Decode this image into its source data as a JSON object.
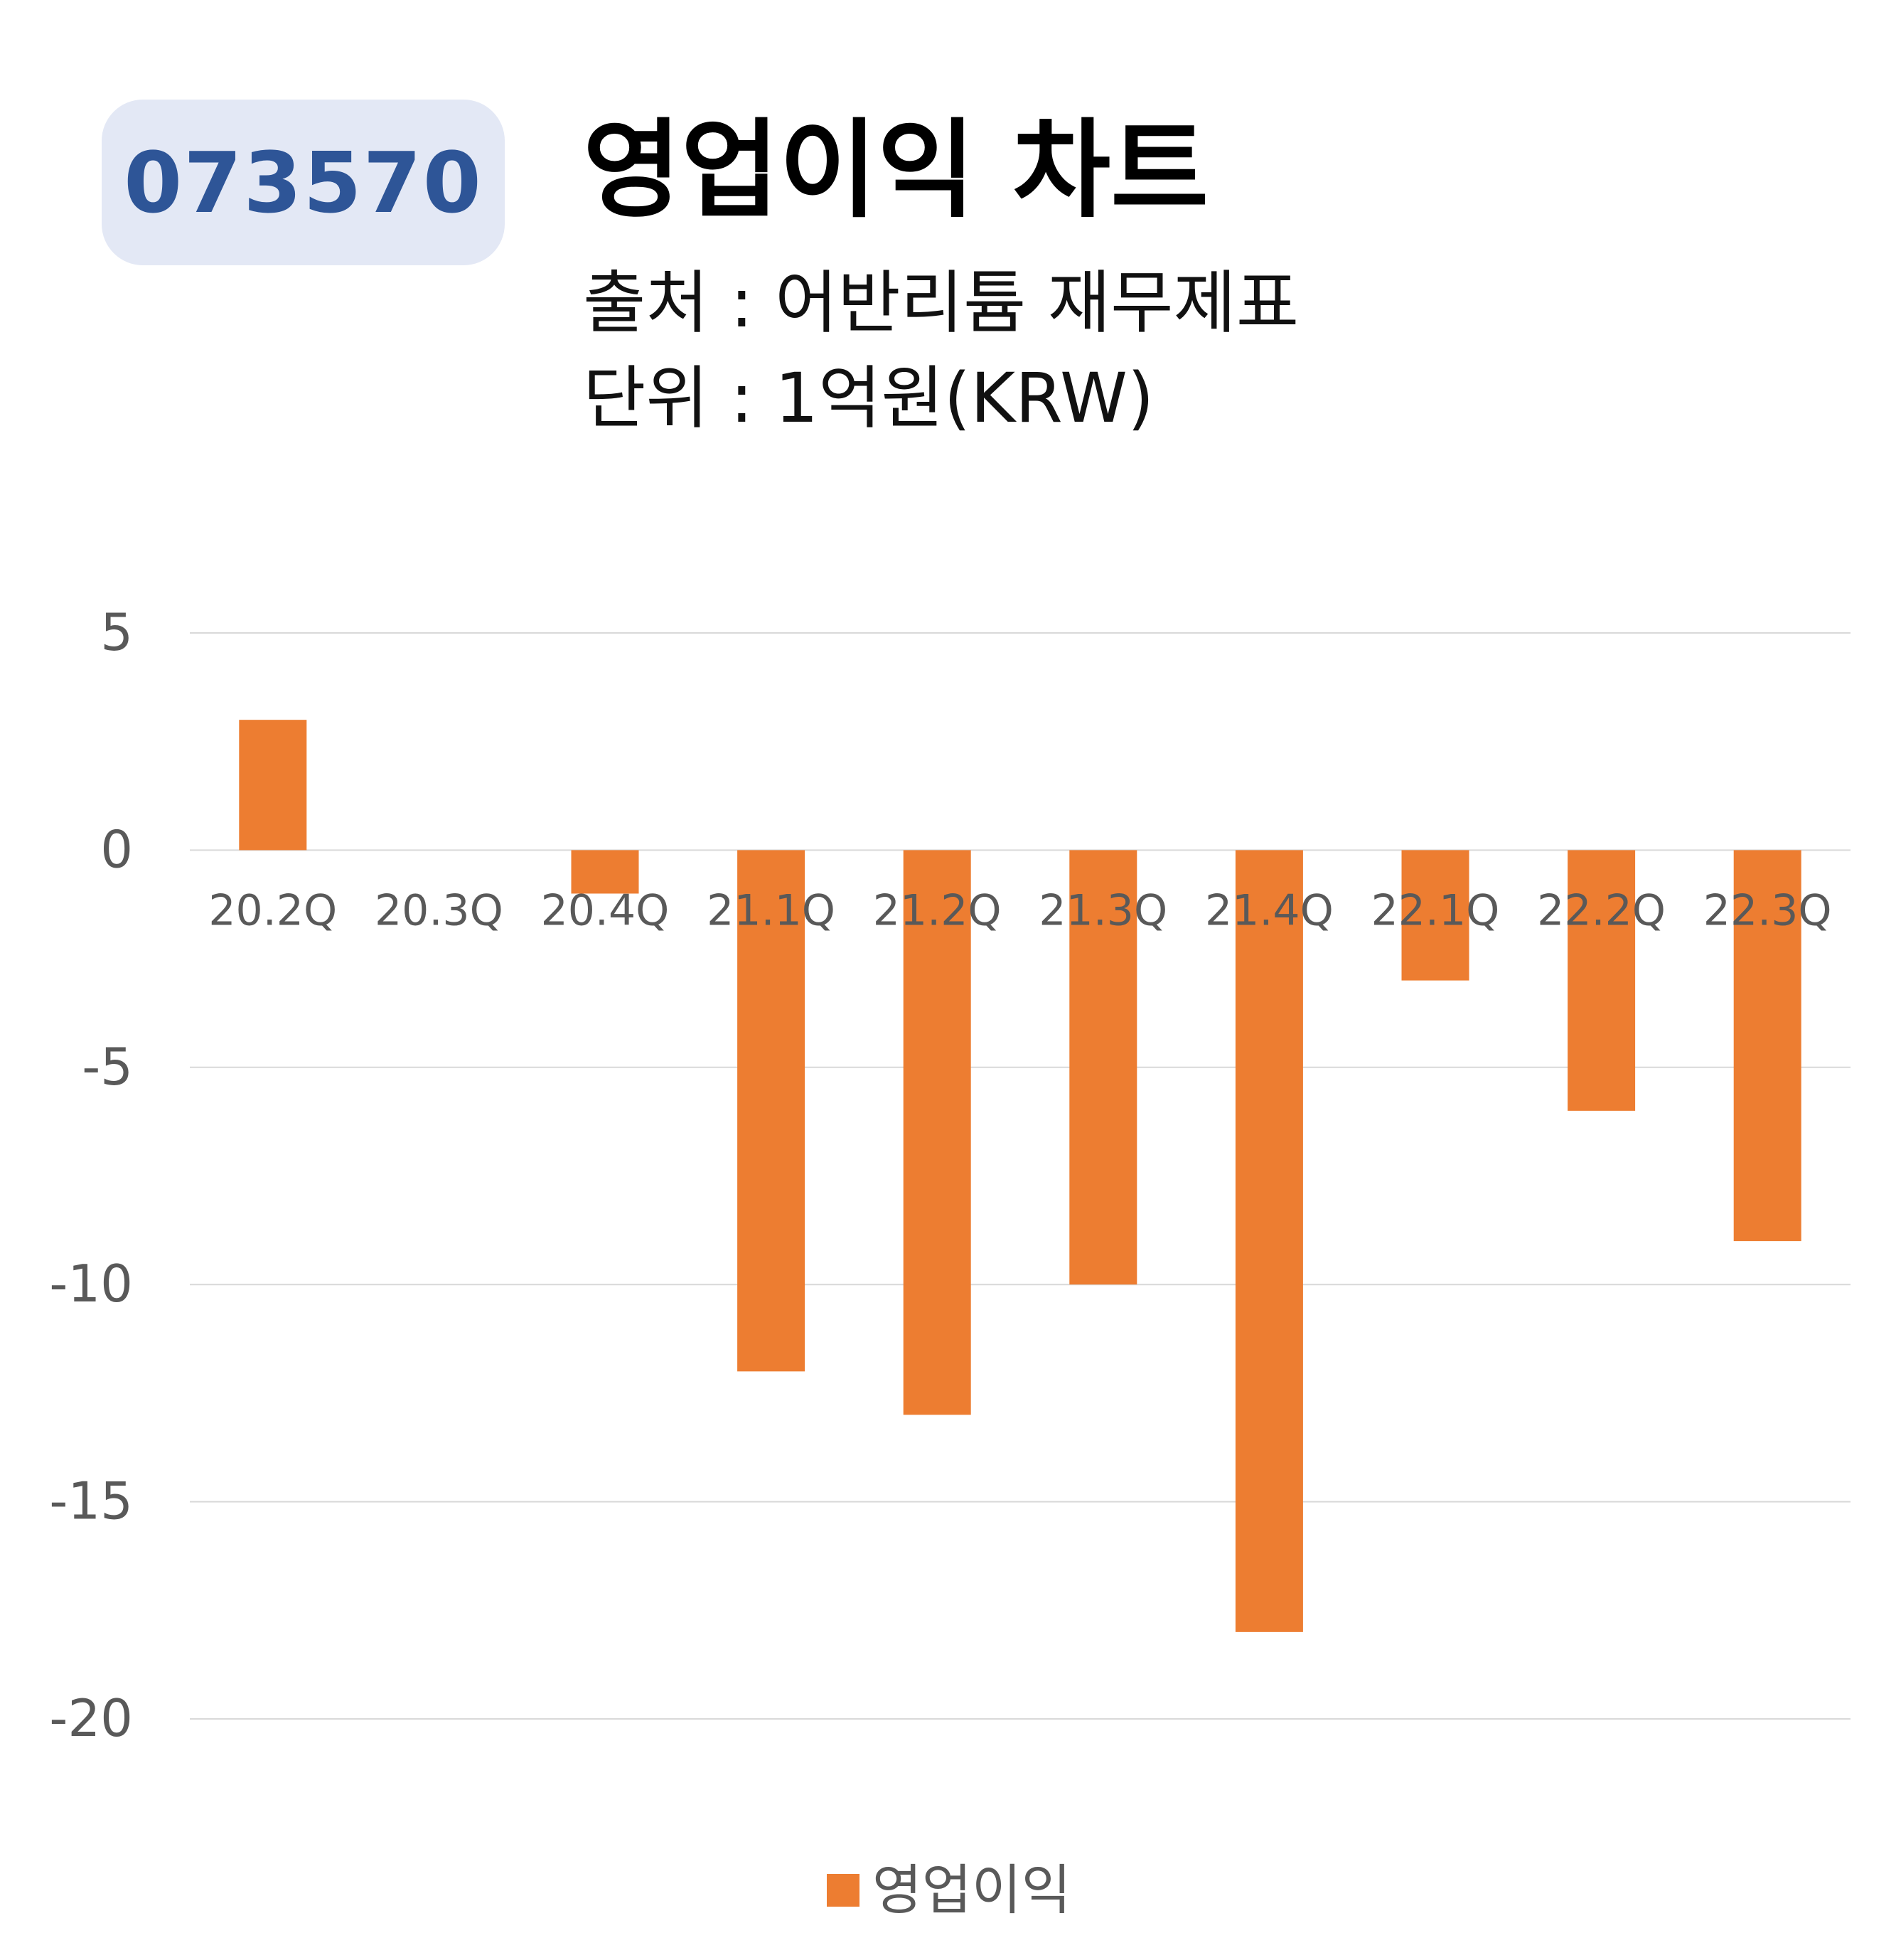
{
  "badge": {
    "code": "073570"
  },
  "header": {
    "title": "영업이익 차트",
    "source": "출처 : 어반리튬 재무제표",
    "unit": "단위 : 1억원(KRW)"
  },
  "colors": {
    "bar": "#ed7d31",
    "badge_bg": "#e3e8f5",
    "badge_text": "#2e5597",
    "grid": "#d9d9d9",
    "axis_text": "#595959"
  },
  "chart_data": {
    "type": "bar",
    "categories": [
      "20.2Q",
      "20.3Q",
      "20.4Q",
      "21.1Q",
      "21.2Q",
      "21.3Q",
      "21.4Q",
      "22.1Q",
      "22.2Q",
      "22.3Q"
    ],
    "series": [
      {
        "name": "영업이익",
        "values": [
          3,
          0,
          -1,
          -12,
          -13,
          -10,
          -18,
          -3,
          -6,
          -9
        ]
      }
    ],
    "y_ticks": [
      "5",
      "0",
      "-5",
      "-10",
      "-15",
      "-20"
    ],
    "ylim": [
      -20,
      5
    ],
    "grid": true,
    "legend_position": "bottom"
  }
}
